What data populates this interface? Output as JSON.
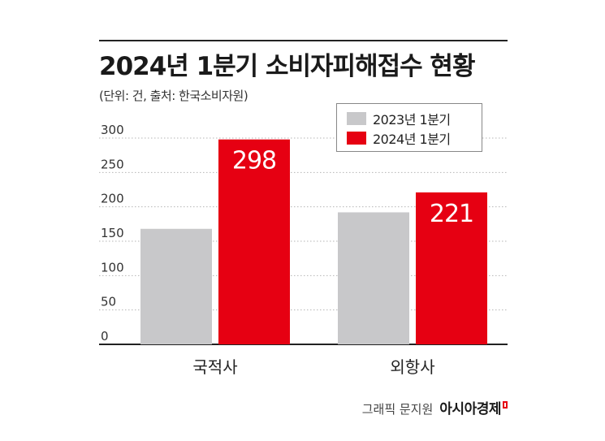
{
  "title": "2024년 1분기 소비자피해접수 현황",
  "subtitle": "(단위: 건, 출처: 한국소비자원)",
  "credit": {
    "text": "그래픽 문지원",
    "brand": "아시아경제"
  },
  "colors": {
    "series_2023": "#c8c8ca",
    "series_2024": "#e60012",
    "grid": "#b5b5b5",
    "axis": "#222222",
    "value_label": "#ffffff"
  },
  "chart_data": {
    "type": "bar",
    "title": "2024년 1분기 소비자피해접수 현황",
    "categories": [
      "국적사",
      "외항사"
    ],
    "series": [
      {
        "name": "2023년 1분기",
        "values": [
          168,
          192
        ],
        "color": "#c8c8ca",
        "labels": [
          "",
          ""
        ]
      },
      {
        "name": "2024년 1분기",
        "values": [
          298,
          221
        ],
        "color": "#e60012",
        "labels": [
          "298",
          "221"
        ]
      }
    ],
    "yticks": [
      0,
      50,
      100,
      150,
      200,
      250,
      300
    ],
    "ylim": [
      0,
      300
    ],
    "xlabel": "",
    "ylabel": "",
    "grid": true,
    "grid_style": "dotted",
    "legend_position": "top-right"
  }
}
